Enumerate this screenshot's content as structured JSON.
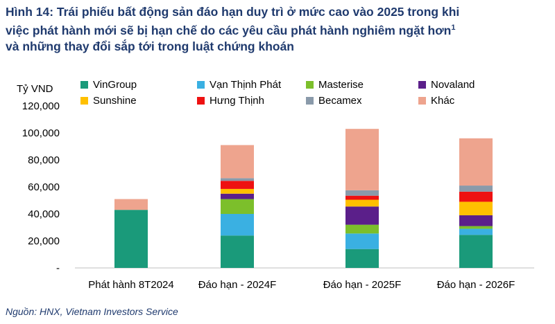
{
  "title": {
    "line1": "Hình 14: Trái phiếu bất động sản đáo hạn duy trì ở mức cao vào 2025 trong khi",
    "line2": "việc phát hành mới sẽ bị hạn chế do các yêu cầu phát hành nghiêm ngặt hơn",
    "sup": "1",
    "line3": "và những thay đổi sắp tới trong luật chứng khoán"
  },
  "source": "Nguồn: HNX, Vietnam Investors Service",
  "chart_data": {
    "type": "bar",
    "stacked": true,
    "unit_label": "Tỷ VND",
    "categories": [
      "Phát hành 8T2024",
      "Đáo hạn - 2024F",
      "Đáo hạn - 2025F",
      "Đáo hạn - 2026F"
    ],
    "ylim": [
      0,
      120000
    ],
    "yticks": [
      0,
      20000,
      40000,
      60000,
      80000,
      100000,
      120000
    ],
    "ytick_labels": [
      "-",
      "20,000",
      "40,000",
      "60,000",
      "80,000",
      "100,000",
      "120,000"
    ],
    "series": [
      {
        "name": "VinGroup",
        "color": "#1a9a7a",
        "values": [
          43000,
          24000,
          14000,
          24500
        ]
      },
      {
        "name": "Vạn Thịnh Phát",
        "color": "#3ab0e2",
        "values": [
          0,
          16000,
          11500,
          4500
        ]
      },
      {
        "name": "Masterise",
        "color": "#7cbf2b",
        "values": [
          0,
          11000,
          6500,
          2000
        ]
      },
      {
        "name": "Novaland",
        "color": "#5b1f8a",
        "values": [
          0,
          4000,
          13500,
          8000
        ]
      },
      {
        "name": "Sunshine",
        "color": "#ffc000",
        "values": [
          0,
          3500,
          5000,
          10000
        ]
      },
      {
        "name": "Hưng Thịnh",
        "color": "#ee1111",
        "values": [
          0,
          6000,
          3000,
          7500
        ]
      },
      {
        "name": "Becamex",
        "color": "#8a9aaa",
        "values": [
          0,
          2000,
          4000,
          4500
        ]
      },
      {
        "name": "Khác",
        "color": "#eea48e",
        "values": [
          8000,
          24500,
          45500,
          35000
        ]
      }
    ]
  }
}
